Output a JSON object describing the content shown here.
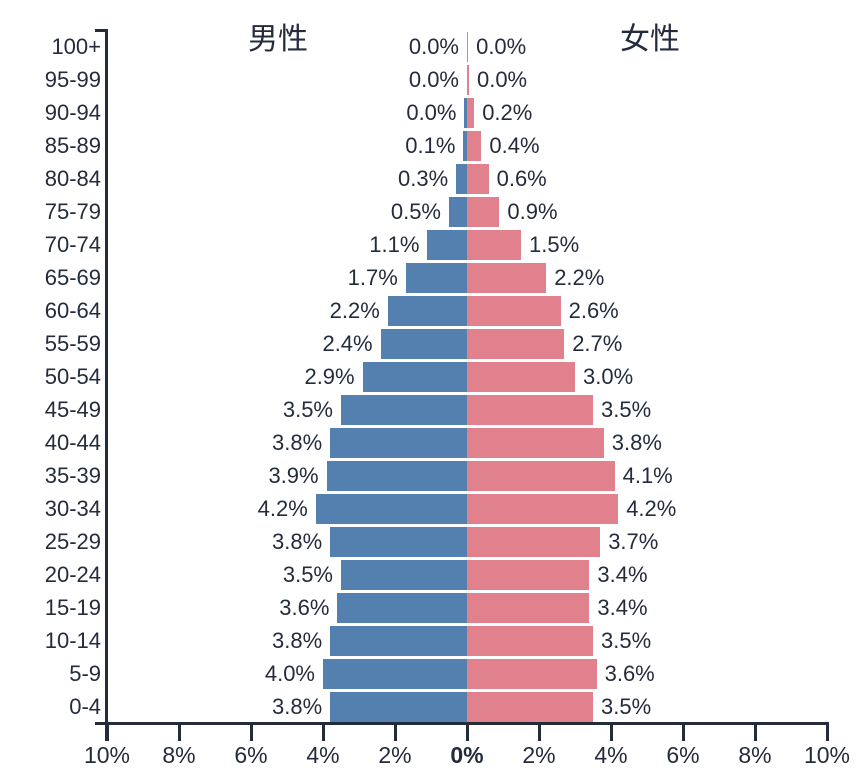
{
  "titles": {
    "male": "男性",
    "female": "女性"
  },
  "colors": {
    "male_bar": "#5480af",
    "female_bar": "#e0818d",
    "axis": "#242c3c",
    "text": "#242c3c",
    "background": "#ffffff"
  },
  "x_axis": {
    "tick_labels": [
      "10%",
      "8%",
      "6%",
      "4%",
      "2%",
      "0%",
      "2%",
      "4%",
      "6%",
      "8%",
      "10%"
    ],
    "bold_label_index": 5,
    "tick_step_pct": 2,
    "max_pct": 10
  },
  "chart_data": {
    "type": "bar",
    "variant": "population-pyramid",
    "orientation": "horizontal",
    "grid": false,
    "xlim": [
      -10,
      10
    ],
    "categories": [
      "100+",
      "95-99",
      "90-94",
      "85-89",
      "80-84",
      "75-79",
      "70-74",
      "65-69",
      "60-64",
      "55-59",
      "50-54",
      "45-49",
      "40-44",
      "35-39",
      "30-34",
      "25-29",
      "20-24",
      "15-19",
      "10-14",
      "5-9",
      "0-4"
    ],
    "series": [
      {
        "name": "男性",
        "side": "left",
        "color": "#5480af",
        "values_pct": [
          0.0,
          0.0,
          0.0,
          0.1,
          0.3,
          0.5,
          1.1,
          1.7,
          2.2,
          2.4,
          2.9,
          3.5,
          3.8,
          3.9,
          4.2,
          3.8,
          3.5,
          3.6,
          3.8,
          4.0,
          3.8
        ],
        "labels": [
          "0.0%",
          "0.0%",
          "0.0%",
          "0.1%",
          "0.3%",
          "0.5%",
          "1.1%",
          "1.7%",
          "2.2%",
          "2.4%",
          "2.9%",
          "3.5%",
          "3.8%",
          "3.9%",
          "4.2%",
          "3.8%",
          "3.5%",
          "3.6%",
          "3.8%",
          "4.0%",
          "3.8%"
        ]
      },
      {
        "name": "女性",
        "side": "right",
        "color": "#e0818d",
        "values_pct": [
          0.0,
          0.0,
          0.2,
          0.4,
          0.6,
          0.9,
          1.5,
          2.2,
          2.6,
          2.7,
          3.0,
          3.5,
          3.8,
          4.1,
          4.2,
          3.7,
          3.4,
          3.4,
          3.5,
          3.6,
          3.5
        ],
        "labels": [
          "0.0%",
          "0.0%",
          "0.2%",
          "0.4%",
          "0.6%",
          "0.9%",
          "1.5%",
          "2.2%",
          "2.6%",
          "2.7%",
          "3.0%",
          "3.5%",
          "3.8%",
          "4.1%",
          "4.2%",
          "3.7%",
          "3.4%",
          "3.4%",
          "3.5%",
          "3.6%",
          "3.5%"
        ]
      }
    ],
    "tiny_bar_render_pct": {
      "male": {
        "2": 0.07
      },
      "female": {
        "0": 0.03,
        "1": 0.055
      }
    }
  }
}
